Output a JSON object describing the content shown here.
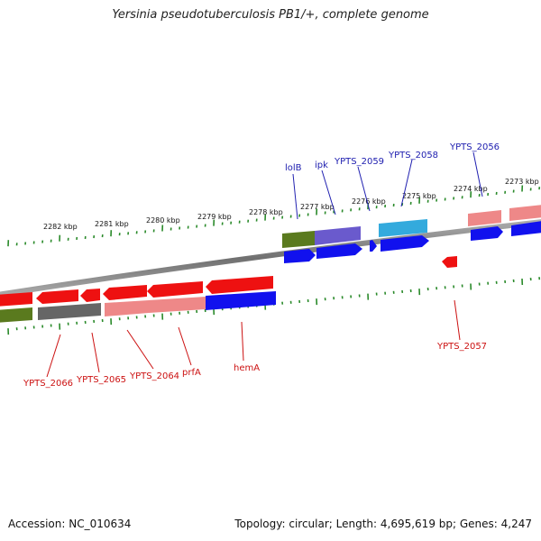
{
  "title": "Yersinia pseudotuberculosis PB1/+, complete genome",
  "footer": {
    "accession": "Accession: NC_010634",
    "topology": "Topology: circular; Length: 4,695,619 bp; Genes: 4,247"
  },
  "scale_labels": [
    "2282 kbp",
    "2281 kbp",
    "2280 kbp",
    "2279 kbp",
    "2278 kbp",
    "2277 kbp",
    "2276 kbp",
    "2275 kbp",
    "2274 kbp",
    "2273 kbp"
  ],
  "upper_gene_labels": [
    "lolB",
    "ipk",
    "YPTS_2059",
    "YPTS_2058",
    "YPTS_2056"
  ],
  "lower_gene_labels": [
    "YPTS_2066",
    "YPTS_2065",
    "YPTS_2064",
    "prfA",
    "hemA",
    "YPTS_2057"
  ],
  "colors": {
    "red": "#ee1111",
    "pink": "#ee8888",
    "blue": "#1111ee",
    "dark_blue": "#2020b0",
    "olive": "#5a7a1e",
    "lavender": "#6a5acd",
    "cyan": "#33aadd",
    "gray": "#666666",
    "tick_green": "#2a8a2a",
    "backbone": "#888888"
  }
}
